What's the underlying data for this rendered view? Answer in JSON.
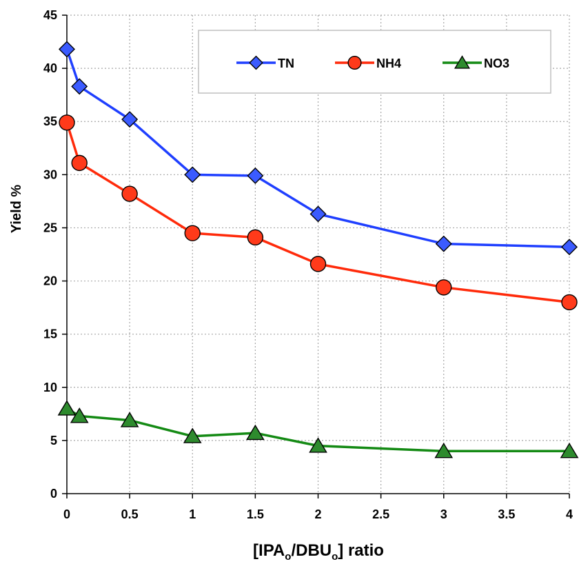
{
  "chart_data": {
    "type": "line",
    "x": [
      0,
      0.1,
      0.5,
      1,
      1.5,
      2,
      3,
      4
    ],
    "xlim": [
      0,
      4
    ],
    "ylim": [
      0,
      45
    ],
    "xticks": [
      "0",
      "0.5",
      "1",
      "1.5",
      "2",
      "2.5",
      "3",
      "3.5",
      "4"
    ],
    "yticks": [
      "0",
      "5",
      "10",
      "15",
      "20",
      "25",
      "30",
      "35",
      "40",
      "45"
    ],
    "ylabel": "Yield %",
    "xlabel": {
      "prefix": "[IPA",
      "sub1": "o",
      "middle": "/DBU",
      "sub2": "o",
      "suffix": "] ratio"
    },
    "grid": true,
    "legend": "top-right",
    "series": [
      {
        "name": "TN",
        "color": "#1f3fff",
        "marker": "diamond",
        "marker_color": "#3b5bff",
        "values": [
          41.8,
          38.3,
          35.2,
          30.0,
          29.9,
          26.3,
          23.5,
          23.2
        ]
      },
      {
        "name": "NH4",
        "color": "#ff2a0a",
        "marker": "circle",
        "marker_color": "#ff3a1a",
        "values": [
          34.9,
          31.1,
          28.2,
          24.5,
          24.1,
          21.6,
          19.4,
          18.0
        ]
      },
      {
        "name": "NO3",
        "color": "#148a14",
        "marker": "triangle",
        "marker_color": "#2e8b2e",
        "values": [
          8.0,
          7.3,
          6.9,
          5.4,
          5.7,
          4.5,
          4.0,
          4.0
        ]
      }
    ]
  }
}
